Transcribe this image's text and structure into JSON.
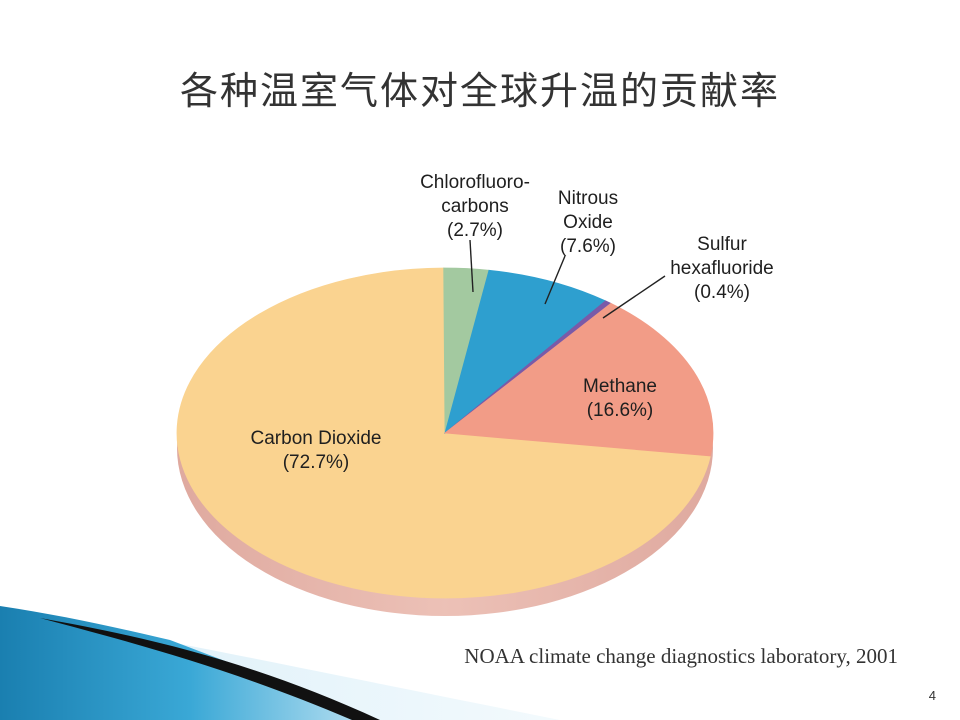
{
  "slide": {
    "title": "各种温室气体对全球升温的贡献率",
    "source": "NOAA climate change diagnostics laboratory, 2001",
    "page_number": "4"
  },
  "chart_data": {
    "type": "pie",
    "title": "",
    "slices": [
      {
        "label": [
          "Carbon Dioxide",
          "(72.7%)"
        ],
        "value": 72.7,
        "color": "#fad390"
      },
      {
        "label": [
          "Chlorofluoro-",
          "carbons",
          "(2.7%)"
        ],
        "value": 2.7,
        "color": "#a3c9a0"
      },
      {
        "label": [
          "Nitrous",
          "Oxide",
          "(7.6%)"
        ],
        "value": 7.6,
        "color": "#2e9fcf"
      },
      {
        "label": [
          "Sulfur",
          "hexafluoride",
          "(0.4%)"
        ],
        "value": 0.4,
        "color": "#7a5aa8"
      },
      {
        "label": [
          "Methane",
          "(16.6%)"
        ],
        "value": 16.6,
        "color": "#f29c87"
      }
    ]
  }
}
